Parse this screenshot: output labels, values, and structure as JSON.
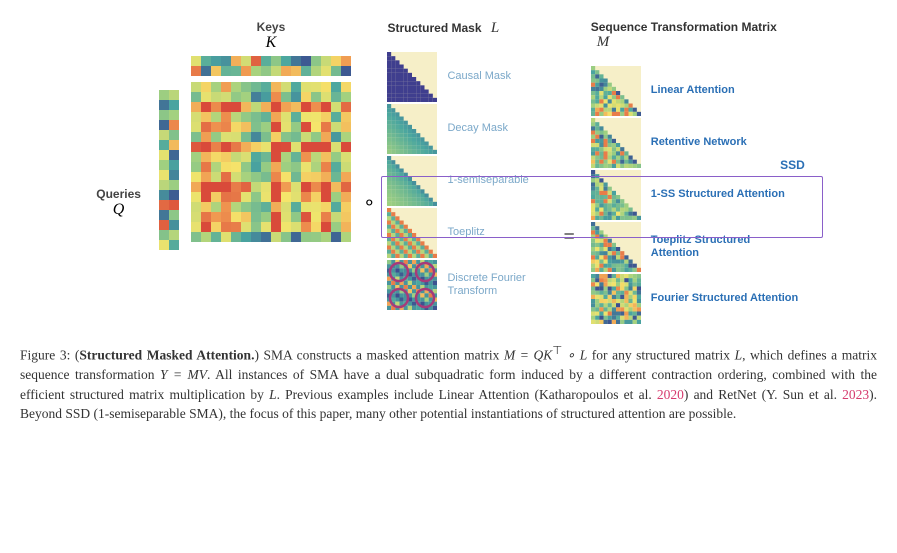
{
  "labels": {
    "keys": "Keys",
    "keys_sym": "K",
    "queries": "Queries",
    "queries_sym": "Q",
    "mask_header": "Structured Mask",
    "mask_sym": "L",
    "result_header": "Sequence Transformation Matrix",
    "result_sym": "M",
    "circ": "∘",
    "eq": "=",
    "ssd": "SSD"
  },
  "masks": [
    {
      "label": "Causal Mask",
      "type": "causal"
    },
    {
      "label": "Decay Mask",
      "type": "decay"
    },
    {
      "label": "1-semiseparable",
      "type": "semisep"
    },
    {
      "label": "Toeplitz",
      "type": "toeplitz"
    },
    {
      "label": "Discrete Fourier Transform",
      "type": "dft"
    }
  ],
  "results": [
    {
      "label": "Linear Attention"
    },
    {
      "label": "Retentive Network"
    },
    {
      "label": "1-SS Structured Attention"
    },
    {
      "label": "Toeplitz Structured Attention"
    },
    {
      "label": "Fourier Structured Attention"
    }
  ],
  "colors": {
    "heat_low": "#3b4b8f",
    "heat_mid1": "#4aa6a0",
    "heat_mid2": "#a0d080",
    "heat_mid3": "#f5e56b",
    "heat_hi": "#d94a3a",
    "cream": "#f6efc8",
    "mask_blue": "#3f3e8e",
    "mask_teal": "#3aa5a3",
    "link": "#2a6fb5",
    "label_gray": "#7ba8c9"
  },
  "caption": {
    "prefix": "Figure 3: (",
    "bold": "Structured Masked Attention.",
    "text1": ") SMA constructs a masked attention matrix ",
    "eq1": "M = QK",
    "sup": "⊤",
    "eq1b": " ∘ L",
    "text2": " for any structured matrix ",
    "it_L": "L",
    "text3": ", which defines a matrix sequence transformation ",
    "eq2": "Y = MV",
    "text4": ". All instances of SMA have a dual subquadratic form induced by a different contraction ordering, combined with the efficient structured matrix multiplication by ",
    "it_L2": "L",
    "text5": ". Previous examples include Linear Attention (Katharopoulos et al. ",
    "ref1": "2020",
    "text6": ") and RetNet (Y. Sun et al. ",
    "ref2": "2023",
    "text7": "). Beyond SSD (1-semiseparable SMA), the focus of this paper, many other potential instantiations of structured attention are possible."
  }
}
